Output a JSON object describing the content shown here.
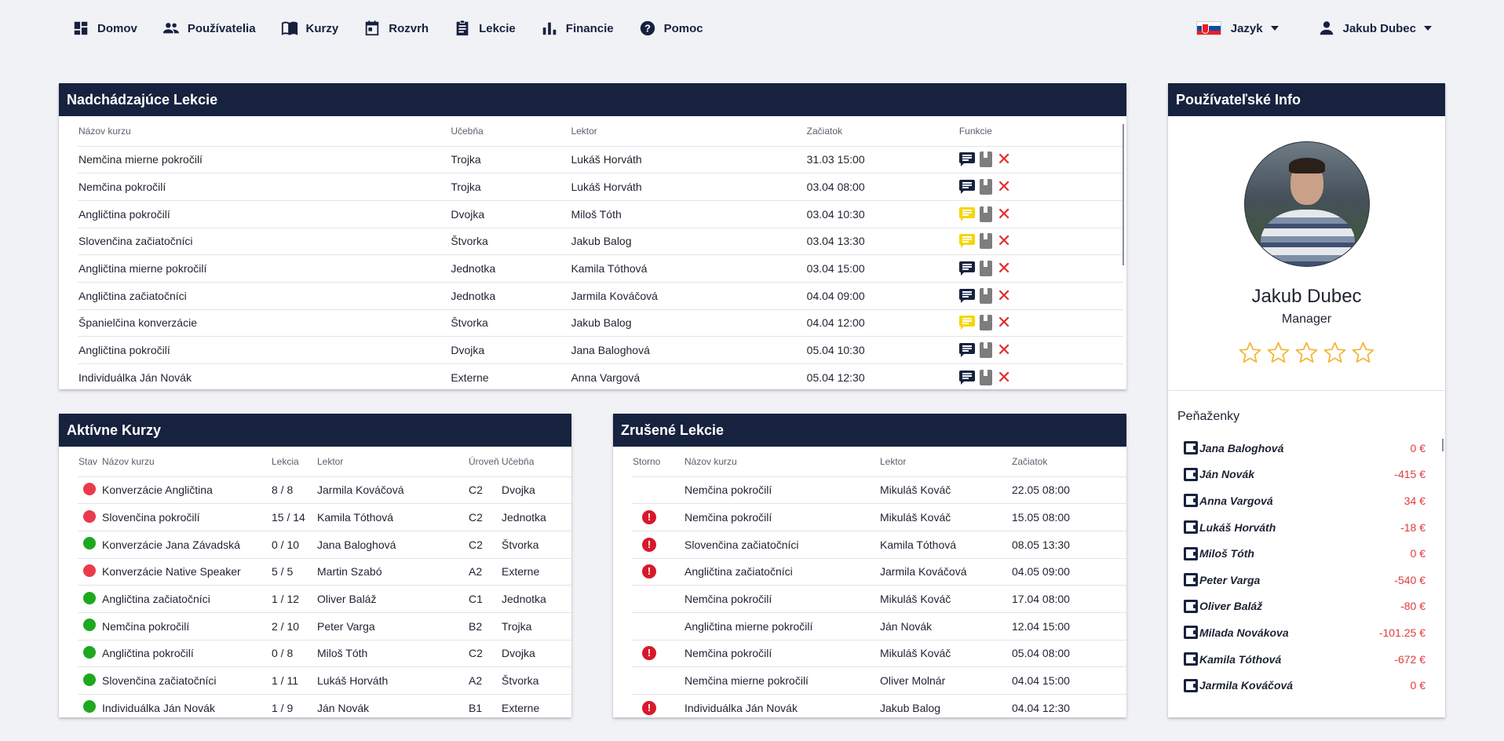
{
  "nav": {
    "left": [
      {
        "label": "Domov",
        "icon": "dashboard-icon"
      },
      {
        "label": "Používatelia",
        "icon": "users-icon"
      },
      {
        "label": "Kurzy",
        "icon": "book-open-icon"
      },
      {
        "label": "Rozvrh",
        "icon": "calendar-icon"
      },
      {
        "label": "Lekcie",
        "icon": "clipboard-icon"
      },
      {
        "label": "Financie",
        "icon": "bar-chart-icon"
      },
      {
        "label": "Pomoc",
        "icon": "help-icon"
      }
    ],
    "language_label": "Jazyk",
    "user_label": "Jakub Dubec"
  },
  "upcoming": {
    "title": "Nadchádzajúce Lekcie",
    "headers": [
      "Názov kurzu",
      "Učebňa",
      "Lektor",
      "Začiatok",
      "Funkcie"
    ],
    "rows": [
      {
        "course": "Nemčina mierne pokročilí",
        "room": "Trojka",
        "lector": "Lukáš Horváth",
        "start": "31.03 15:00",
        "note": "dark"
      },
      {
        "course": "Nemčina pokročilí",
        "room": "Trojka",
        "lector": "Lukáš Horváth",
        "start": "03.04 08:00",
        "note": "dark"
      },
      {
        "course": "Angličtina pokročilí",
        "room": "Dvojka",
        "lector": "Miloš Tóth",
        "start": "03.04 10:30",
        "note": "yellow"
      },
      {
        "course": "Slovenčina začiatočníci",
        "room": "Štvorka",
        "lector": "Jakub Balog",
        "start": "03.04 13:30",
        "note": "yellow"
      },
      {
        "course": "Angličtina mierne pokročilí",
        "room": "Jednotka",
        "lector": "Kamila Tóthová",
        "start": "03.04 15:00",
        "note": "dark"
      },
      {
        "course": "Angličtina začiatočníci",
        "room": "Jednotka",
        "lector": "Jarmila Kováčová",
        "start": "04.04 09:00",
        "note": "dark"
      },
      {
        "course": "Španielčina konverzácie",
        "room": "Štvorka",
        "lector": "Jakub Balog",
        "start": "04.04 12:00",
        "note": "yellow"
      },
      {
        "course": "Angličtina pokročilí",
        "room": "Dvojka",
        "lector": "Jana Baloghová",
        "start": "05.04 10:30",
        "note": "dark"
      },
      {
        "course": "Individuálka Ján Novák",
        "room": "Externe",
        "lector": "Anna Vargová",
        "start": "05.04 12:30",
        "note": "dark"
      }
    ]
  },
  "active": {
    "title": "Aktívne Kurzy",
    "headers": [
      "Stav",
      "Názov kurzu",
      "Lekcia",
      "Lektor",
      "Úroveň",
      "Učebňa"
    ],
    "rows": [
      {
        "status": "red",
        "course": "Konverzácie Angličtina",
        "lesson": "8 / 8",
        "lector": "Jarmila Kováčová",
        "level": "C2",
        "room": "Dvojka"
      },
      {
        "status": "red",
        "course": "Slovenčina pokročilí",
        "lesson": "15 / 14",
        "lector": "Kamila Tóthová",
        "level": "C2",
        "room": "Jednotka"
      },
      {
        "status": "green",
        "course": "Konverzácie Jana Závadská",
        "lesson": "0 / 10",
        "lector": "Jana Baloghová",
        "level": "C2",
        "room": "Štvorka"
      },
      {
        "status": "red",
        "course": "Konverzácie Native Speaker",
        "lesson": "5 / 5",
        "lector": "Martin Szabó",
        "level": "A2",
        "room": "Externe"
      },
      {
        "status": "green",
        "course": "Angličtina začiatočníci",
        "lesson": "1 / 12",
        "lector": "Oliver Baláž",
        "level": "C1",
        "room": "Jednotka"
      },
      {
        "status": "green",
        "course": "Nemčina pokročilí",
        "lesson": "2 / 10",
        "lector": "Peter Varga",
        "level": "B2",
        "room": "Trojka"
      },
      {
        "status": "green",
        "course": "Angličtina pokročilí",
        "lesson": "0 / 8",
        "lector": "Miloš Tóth",
        "level": "C2",
        "room": "Dvojka"
      },
      {
        "status": "green",
        "course": "Slovenčina začiatočníci",
        "lesson": "1 / 11",
        "lector": "Lukáš Horváth",
        "level": "A2",
        "room": "Štvorka"
      },
      {
        "status": "green",
        "course": "Individuálka Ján Novák",
        "lesson": "1 / 9",
        "lector": "Ján Novák",
        "level": "B1",
        "room": "Externe"
      }
    ]
  },
  "cancelled": {
    "title": "Zrušené Lekcie",
    "headers": [
      "Storno",
      "Názov kurzu",
      "Lektor",
      "Začiatok"
    ],
    "rows": [
      {
        "storno": false,
        "course": "Nemčina pokročilí",
        "lector": "Mikuláš Kováč",
        "start": "22.05 08:00"
      },
      {
        "storno": true,
        "course": "Nemčina pokročilí",
        "lector": "Mikuláš Kováč",
        "start": "15.05 08:00"
      },
      {
        "storno": true,
        "course": "Slovenčina začiatočníci",
        "lector": "Kamila Tóthová",
        "start": "08.05 13:30"
      },
      {
        "storno": true,
        "course": "Angličtina začiatočníci",
        "lector": "Jarmila Kováčová",
        "start": "04.05 09:00"
      },
      {
        "storno": false,
        "course": "Nemčina pokročilí",
        "lector": "Mikuláš Kováč",
        "start": "17.04 08:00"
      },
      {
        "storno": false,
        "course": "Angličtina mierne pokročilí",
        "lector": "Ján Novák",
        "start": "12.04 15:00"
      },
      {
        "storno": true,
        "course": "Nemčina pokročilí",
        "lector": "Mikuláš Kováč",
        "start": "05.04 08:00"
      },
      {
        "storno": false,
        "course": "Nemčina mierne pokročilí",
        "lector": "Oliver Molnár",
        "start": "04.04 15:00"
      },
      {
        "storno": true,
        "course": "Individuálka Ján Novák",
        "lector": "Jakub Balog",
        "start": "04.04 12:30"
      }
    ]
  },
  "userinfo": {
    "title": "Používateľské Info",
    "name": "Jakub Dubec",
    "role": "Manager",
    "rating": 0,
    "rating_max": 5,
    "wallets_title": "Peňaženky",
    "wallets": [
      {
        "name": "Jana Baloghová",
        "amount": "0 €"
      },
      {
        "name": "Ján Novák",
        "amount": "-415 €"
      },
      {
        "name": "Anna Vargová",
        "amount": "34 €"
      },
      {
        "name": "Lukáš Horváth",
        "amount": "-18 €"
      },
      {
        "name": "Miloš Tóth",
        "amount": "0 €"
      },
      {
        "name": "Peter Varga",
        "amount": "-540 €"
      },
      {
        "name": "Oliver Baláž",
        "amount": "-80 €"
      },
      {
        "name": "Milada Novákova",
        "amount": "-101.25 €"
      },
      {
        "name": "Kamila Tóthová",
        "amount": "-672 €"
      },
      {
        "name": "Jarmila Kováčová",
        "amount": "0 €"
      }
    ]
  },
  "colors": {
    "header_bg": "#17223f",
    "note_dark": "#17223f",
    "note_yellow": "#f5d60a",
    "status_red": "#ea3a4c",
    "status_green": "#1fa81f",
    "star": "#f4b63a"
  }
}
